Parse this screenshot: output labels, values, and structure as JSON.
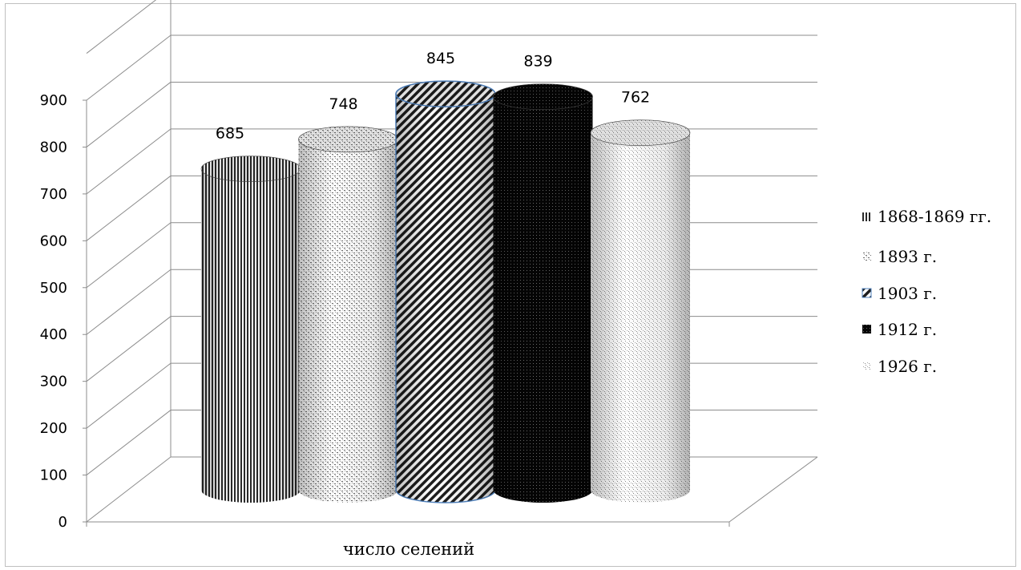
{
  "chart_data": {
    "type": "bar",
    "style": "3d-cylinder",
    "categories": [
      "число селений"
    ],
    "series": [
      {
        "name": "1868-1869 гг.",
        "values": [
          685
        ],
        "pattern": "vertical-lines",
        "color": "#4a4a4a"
      },
      {
        "name": "1893 г.",
        "values": [
          748
        ],
        "pattern": "light-dots",
        "color": "#9a9a9a"
      },
      {
        "name": "1903 г.",
        "values": [
          845
        ],
        "pattern": "diagonal-lines",
        "color": "#3a3a3a"
      },
      {
        "name": "1912 г.",
        "values": [
          839
        ],
        "pattern": "dense-dark",
        "color": "#111111"
      },
      {
        "name": "1926 г.",
        "values": [
          762
        ],
        "pattern": "fine-dots",
        "color": "#b5b5b5"
      }
    ],
    "ylim": [
      0,
      900
    ],
    "yticks": [
      "0",
      "100",
      "200",
      "300",
      "400",
      "500",
      "600",
      "700",
      "800",
      "900"
    ],
    "grid": true,
    "legend_position": "right",
    "title": "",
    "xlabel": "",
    "ylabel": ""
  }
}
